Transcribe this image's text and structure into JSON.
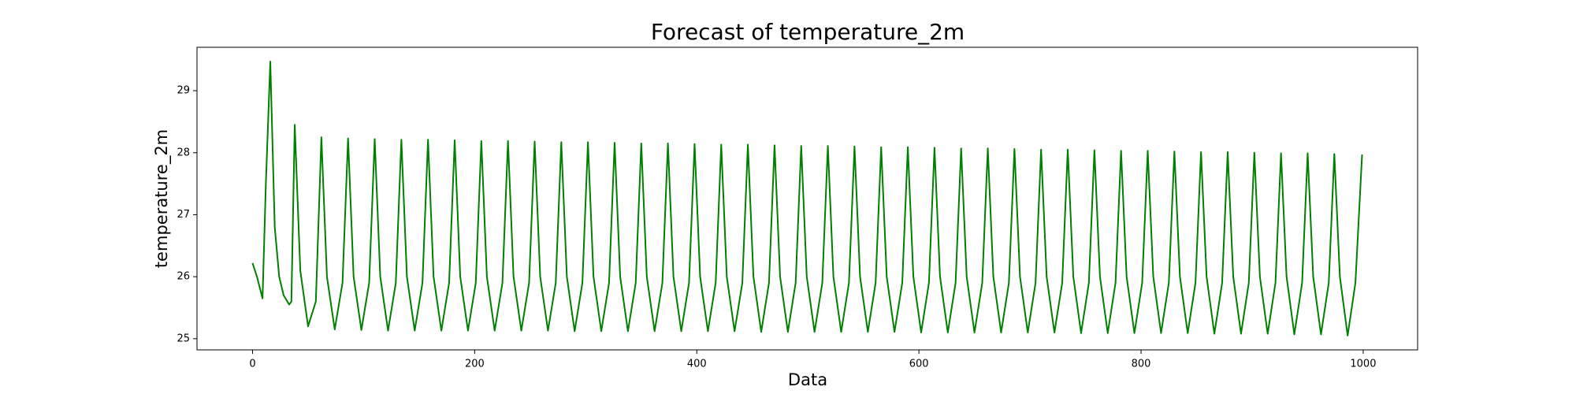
{
  "chart_data": {
    "type": "line",
    "title": "Forecast of temperature_2m",
    "x_label": "Data",
    "y_label": "temperature_2m",
    "x": [
      0,
      4,
      9,
      12,
      16,
      20,
      24,
      28,
      33,
      35,
      38,
      43,
      50,
      57,
      62,
      67,
      74,
      81,
      86,
      91,
      98,
      105,
      110,
      115,
      122,
      129,
      134,
      139,
      146,
      153,
      158,
      163,
      170,
      177,
      182,
      187,
      194,
      201,
      206,
      211,
      218,
      225,
      230,
      235,
      242,
      249,
      254,
      259,
      266,
      273,
      278,
      283,
      290,
      297,
      302,
      307,
      314,
      321,
      326,
      331,
      338,
      345,
      350,
      355,
      362,
      369,
      374,
      379,
      386,
      393,
      398,
      403,
      410,
      417,
      422,
      427,
      434,
      441,
      446,
      451,
      458,
      465,
      470,
      475,
      482,
      489,
      494,
      499,
      506,
      513,
      518,
      523,
      530,
      537,
      542,
      547,
      554,
      561,
      566,
      571,
      578,
      585,
      590,
      595,
      602,
      609,
      614,
      619,
      626,
      633,
      638,
      643,
      650,
      657,
      662,
      667,
      674,
      681,
      686,
      691,
      698,
      705,
      710,
      715,
      722,
      729,
      734,
      739,
      746,
      753,
      758,
      763,
      770,
      777,
      782,
      787,
      794,
      801,
      806,
      811,
      818,
      825,
      830,
      835,
      842,
      849,
      854,
      859,
      866,
      873,
      878,
      883,
      890,
      897,
      902,
      907,
      914,
      921,
      926,
      931,
      938,
      945,
      950,
      955,
      962,
      969,
      974,
      979,
      986,
      993,
      999
    ],
    "series": [
      {
        "name": "temperature_2m",
        "color": "#008000",
        "values": [
          26.22,
          26.0,
          25.65,
          27.5,
          29.47,
          26.8,
          26.0,
          25.7,
          25.55,
          25.6,
          28.45,
          26.1,
          25.2,
          25.6,
          28.25,
          26.0,
          25.15,
          25.9,
          28.23,
          26.0,
          25.14,
          25.9,
          28.22,
          26.0,
          25.13,
          25.9,
          28.21,
          26.0,
          25.13,
          25.9,
          28.21,
          26.0,
          25.13,
          25.9,
          28.2,
          26.0,
          25.13,
          25.9,
          28.19,
          26.0,
          25.13,
          25.9,
          28.19,
          26.0,
          25.13,
          25.9,
          28.18,
          26.0,
          25.13,
          25.9,
          28.17,
          26.0,
          25.12,
          25.9,
          28.17,
          26.0,
          25.12,
          25.9,
          28.16,
          26.0,
          25.12,
          25.9,
          28.15,
          26.0,
          25.12,
          25.9,
          28.15,
          26.0,
          25.12,
          25.9,
          28.14,
          26.0,
          25.12,
          25.9,
          28.13,
          26.0,
          25.12,
          25.9,
          28.13,
          26.0,
          25.11,
          25.9,
          28.12,
          26.0,
          25.11,
          25.9,
          28.11,
          26.0,
          25.11,
          25.9,
          28.11,
          26.0,
          25.11,
          25.9,
          28.1,
          26.0,
          25.11,
          25.9,
          28.09,
          26.0,
          25.11,
          25.9,
          28.09,
          26.0,
          25.1,
          25.9,
          28.08,
          26.0,
          25.1,
          25.9,
          28.07,
          26.0,
          25.1,
          25.9,
          28.07,
          26.0,
          25.1,
          25.9,
          28.06,
          26.0,
          25.1,
          25.9,
          28.05,
          26.0,
          25.1,
          25.9,
          28.05,
          26.0,
          25.09,
          25.9,
          28.04,
          26.0,
          25.09,
          25.9,
          28.03,
          26.0,
          25.09,
          25.9,
          28.03,
          26.0,
          25.09,
          25.9,
          28.02,
          26.0,
          25.09,
          25.9,
          28.01,
          26.0,
          25.08,
          25.9,
          28.01,
          26.0,
          25.08,
          25.9,
          28.0,
          26.0,
          25.08,
          25.9,
          27.99,
          26.0,
          25.07,
          25.9,
          27.99,
          26.0,
          25.07,
          25.9,
          27.98,
          26.0,
          25.05,
          25.9,
          27.97
        ]
      }
    ],
    "xlim": [
      -50,
      1049
    ],
    "xticks": [
      0,
      200,
      400,
      600,
      800,
      1000
    ],
    "ylim": [
      24.82,
      29.7
    ],
    "yticks": [
      25,
      26,
      27,
      28,
      29
    ],
    "grid": false
  }
}
